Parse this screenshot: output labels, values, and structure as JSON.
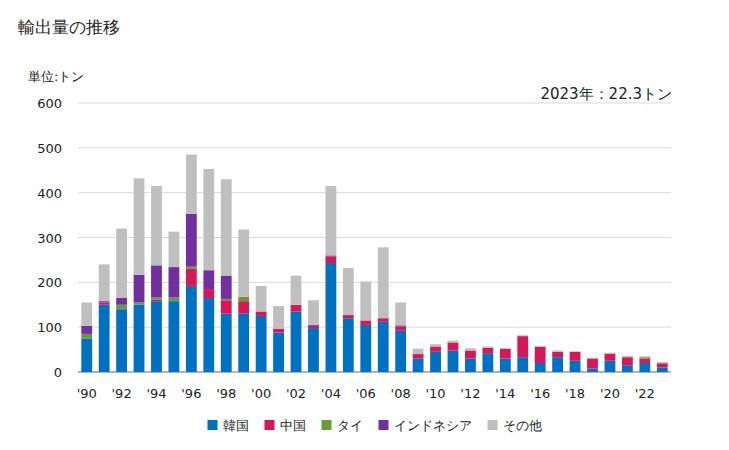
{
  "chart_data": {
    "type": "bar",
    "title": "輸出量の推移",
    "y_label": "単位:トン",
    "annotation": "2023年：22.3トン",
    "stacked": true,
    "grid": true,
    "legend": "bottom",
    "categories": [
      "'90",
      null,
      "'92",
      null,
      "'94",
      null,
      "'96",
      null,
      "'98",
      null,
      "'00",
      null,
      "'02",
      null,
      "'04",
      null,
      "'06",
      null,
      "'08",
      null,
      "'10",
      null,
      "'12",
      null,
      "'14",
      null,
      "'16",
      null,
      "'18",
      null,
      "'20",
      null,
      "'22",
      null
    ],
    "ylim": [
      0,
      600
    ],
    "yticks": [
      0,
      100,
      200,
      300,
      400,
      500,
      600
    ],
    "series": [
      {
        "name": "韓国",
        "color": "#0070c0",
        "values": [
          75,
          150,
          140,
          150,
          158,
          158,
          192,
          165,
          130,
          130,
          125,
          88,
          135,
          98,
          243,
          120,
          105,
          112,
          92,
          30,
          45,
          48,
          30,
          42,
          30,
          33,
          20,
          33,
          25,
          8,
          25,
          15,
          20,
          10
        ]
      },
      {
        "name": "中国",
        "color": "#d6185a",
        "values": [
          0,
          5,
          0,
          0,
          3,
          0,
          38,
          20,
          30,
          28,
          10,
          8,
          15,
          5,
          15,
          7,
          10,
          8,
          10,
          10,
          12,
          18,
          18,
          12,
          22,
          47,
          36,
          12,
          20,
          22,
          16,
          18,
          10,
          9
        ]
      },
      {
        "name": "タイ",
        "color": "#6a9a3a",
        "values": [
          10,
          0,
          10,
          5,
          5,
          8,
          5,
          0,
          3,
          10,
          0,
          0,
          0,
          0,
          0,
          0,
          0,
          0,
          0,
          0,
          0,
          0,
          0,
          0,
          0,
          0,
          0,
          0,
          0,
          0,
          0,
          0,
          3,
          2
        ]
      },
      {
        "name": "インドネシア",
        "color": "#7030a0",
        "values": [
          18,
          3,
          15,
          62,
          72,
          68,
          118,
          42,
          52,
          0,
          0,
          0,
          0,
          2,
          2,
          0,
          0,
          0,
          2,
          0,
          0,
          0,
          0,
          0,
          0,
          0,
          0,
          0,
          0,
          0,
          0,
          0,
          0,
          0
        ]
      },
      {
        "name": "その他",
        "color": "#bfbfbf",
        "values": [
          52,
          82,
          155,
          215,
          177,
          79,
          132,
          226,
          215,
          150,
          57,
          51,
          65,
          55,
          155,
          105,
          87,
          158,
          51,
          12,
          5,
          4,
          5,
          3,
          1,
          2,
          2,
          3,
          1,
          2,
          2,
          3,
          2,
          1.3
        ]
      }
    ]
  }
}
